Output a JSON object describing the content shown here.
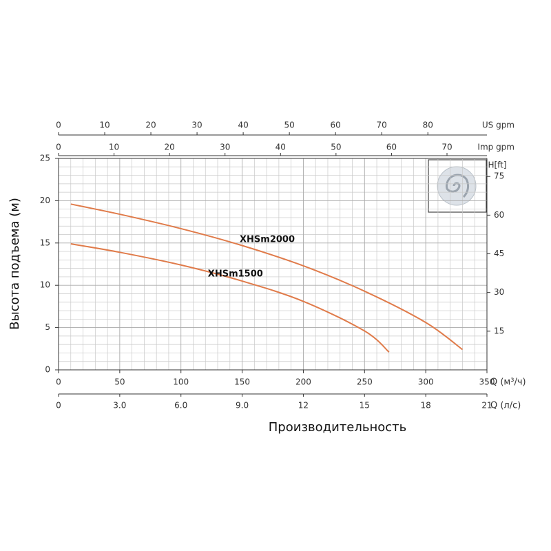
{
  "chart_data": {
    "type": "line",
    "ylabel": "Высота подъема (м)",
    "xlabel": "Производительность",
    "x_unit_label": "Q (м³/ч)",
    "xlim": [
      0,
      350
    ],
    "xticks": [
      0,
      50,
      100,
      150,
      200,
      250,
      300,
      350
    ],
    "ylim": [
      0,
      25
    ],
    "yticks": [
      0,
      5,
      10,
      15,
      20,
      25
    ],
    "y2label": "H[ft]",
    "y2lim": [
      0,
      82
    ],
    "y2ticks": [
      15,
      30,
      45,
      60,
      75
    ],
    "grid": true,
    "series": [
      {
        "name": "XHSm2000",
        "color": "#e07b4a",
        "x": [
          10,
          50,
          100,
          150,
          200,
          250,
          300,
          330
        ],
        "values": [
          19.6,
          18.4,
          16.7,
          14.7,
          12.3,
          9.3,
          5.6,
          2.4
        ]
      },
      {
        "name": "XHSm1500",
        "color": "#e07b4a",
        "x": [
          10,
          50,
          100,
          150,
          200,
          250,
          270
        ],
        "values": [
          14.9,
          13.9,
          12.4,
          10.5,
          8.1,
          4.6,
          2.1
        ]
      }
    ],
    "secondary_x_axes": [
      {
        "label": "Q (л/с)",
        "lim": [
          0,
          21
        ],
        "ticks": [
          0,
          {
            "value": 3,
            "label": "3.0"
          },
          {
            "value": 6,
            "label": "6.0"
          },
          {
            "value": 9,
            "label": "9.0"
          },
          12,
          15,
          18,
          21
        ]
      },
      {
        "label": "US gpm",
        "lim": [
          0,
          92.8
        ],
        "ticks": [
          0,
          10,
          20,
          30,
          40,
          50,
          60,
          70,
          80
        ]
      },
      {
        "label": "Imp gpm",
        "lim": [
          0,
          77.2
        ],
        "ticks": [
          0,
          10,
          20,
          30,
          40,
          50,
          60,
          70
        ]
      }
    ]
  }
}
